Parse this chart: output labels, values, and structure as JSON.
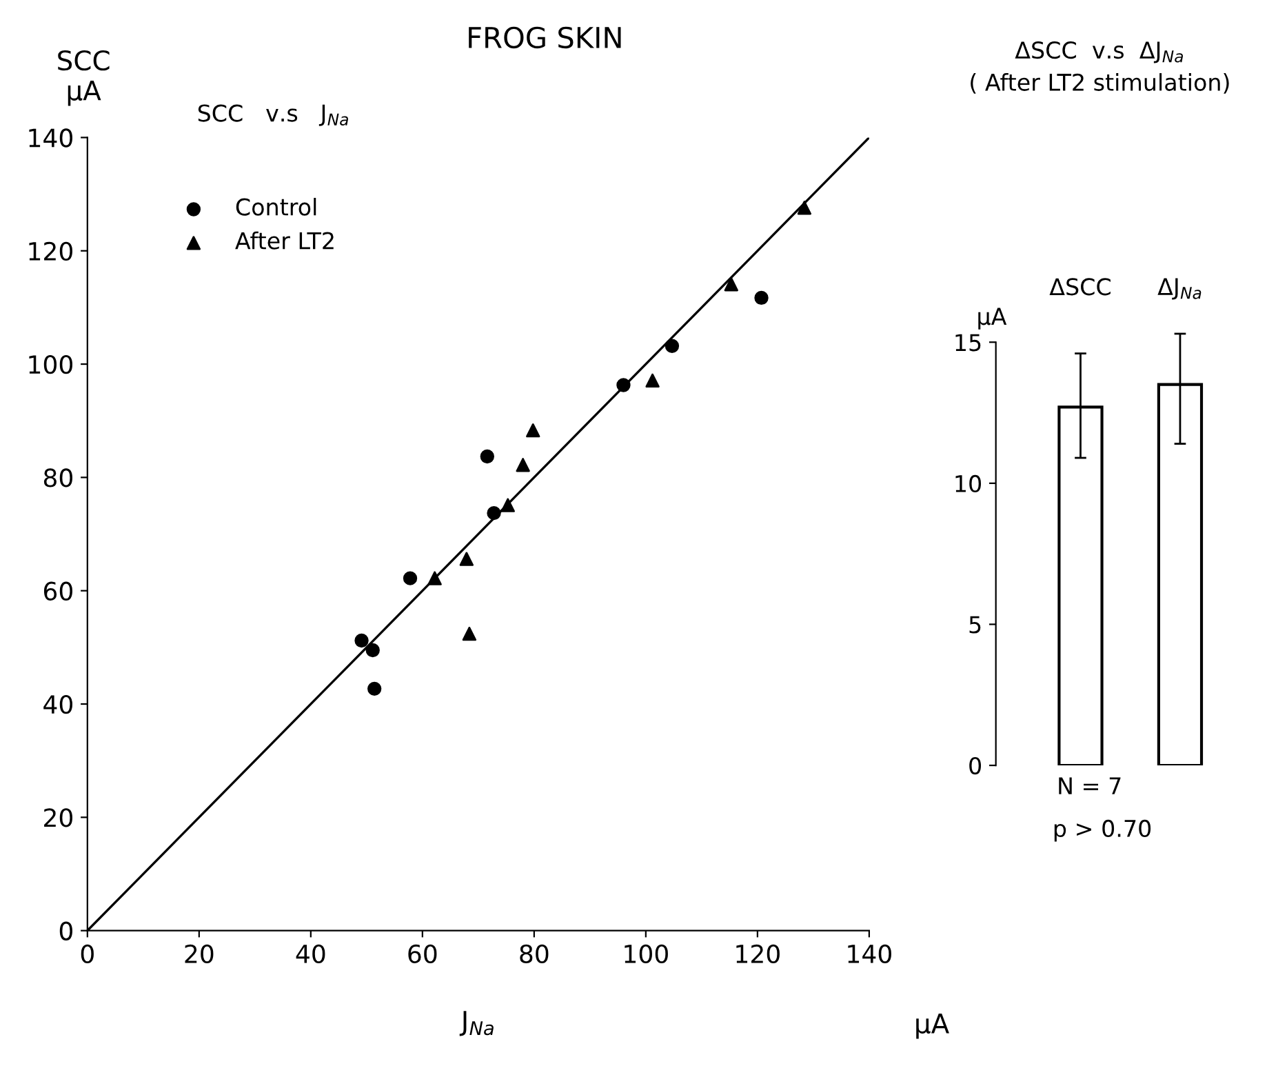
{
  "chart_data": [
    {
      "type": "scatter",
      "title": "FROG SKIN",
      "subtitle": "SCC   v.s   J$_{Na}$",
      "xlabel": "J$_{Na}$",
      "ylabel": "SCC\nμA",
      "annotations": [
        "μA"
      ],
      "xlim": [
        0,
        140
      ],
      "ylim": [
        0,
        140
      ],
      "xticks": [
        0,
        20,
        40,
        60,
        80,
        100,
        120,
        140
      ],
      "yticks": [
        0,
        20,
        40,
        60,
        80,
        100,
        120,
        140
      ],
      "grid": false,
      "legend": "top left",
      "series": [
        {
          "name": "Control",
          "color": "#000000",
          "marker": "circle",
          "x": [
            49.1,
            51.1,
            51.4,
            57.8,
            71.6,
            72.8,
            96,
            104.7,
            120.7
          ],
          "values": [
            51.2,
            49.5,
            42.7,
            62.2,
            83.7,
            73.7,
            96.3,
            103.2,
            111.7
          ]
        },
        {
          "name": "After LT2",
          "color": "#000000",
          "marker": "triangle",
          "x": [
            62.2,
            67.9,
            68.4,
            75.3,
            78,
            79.8,
            101.2,
            115.3,
            128.4
          ],
          "values": [
            62.2,
            65.6,
            52.4,
            75.1,
            82.2,
            88.3,
            97.1,
            114.1,
            127.6
          ]
        },
        {
          "type": "line",
          "color": "#000000",
          "line_style": "solid",
          "x": [
            0,
            140
          ],
          "values": [
            0,
            140
          ]
        }
      ]
    },
    {
      "type": "bar",
      "title": "ΔSCC  v.s  ΔJ$_{Na}$",
      "subtitle": "( After LT2 stimulation)",
      "ylabel": "μA",
      "annotations": [
        "N = 7",
        "p > 0.70"
      ],
      "categories": [
        "ΔSCC",
        "ΔJ$_{Na}$"
      ],
      "values": [
        12.7,
        13.5
      ],
      "errors": [
        [
          10.9,
          14.6
        ],
        [
          11.4,
          15.3
        ]
      ],
      "color": "#ffffff",
      "ylim": [
        0,
        15
      ],
      "yticks": [
        0,
        5,
        10,
        15
      ],
      "grid": false
    }
  ]
}
